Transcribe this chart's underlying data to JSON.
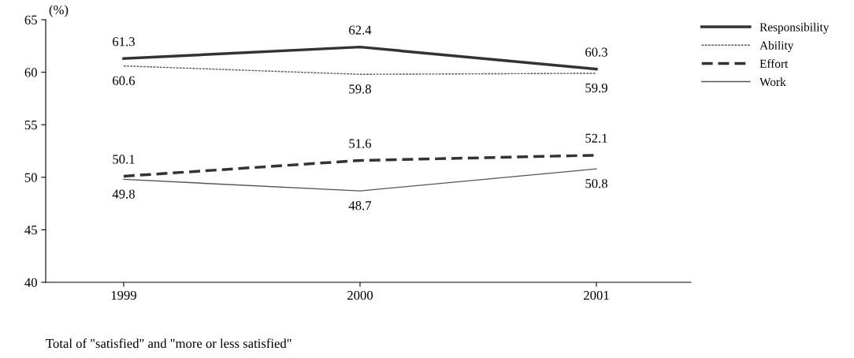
{
  "chart_data": {
    "type": "line",
    "ylabel": "(%)",
    "categories": [
      "1999",
      "2000",
      "2001"
    ],
    "series": [
      {
        "name": "Responsibility",
        "color": "#333333",
        "values": [
          61.3,
          62.4,
          60.3
        ],
        "line_style": "solid"
      },
      {
        "name": "Ability",
        "color": "#555555",
        "values": [
          60.6,
          59.8,
          59.9
        ],
        "line_style": "dotted"
      },
      {
        "name": "Effort",
        "color": "#333333",
        "values": [
          50.1,
          51.6,
          52.1
        ],
        "line_style": "dashed"
      },
      {
        "name": "Work",
        "color": "#555555",
        "values": [
          49.8,
          48.7,
          50.8
        ],
        "line_style": "solid"
      }
    ],
    "ylim": [
      40,
      65
    ],
    "yticks": [
      40,
      45,
      50,
      55,
      60,
      65
    ],
    "grid": false,
    "legend": "right",
    "marker": "none",
    "data_labels": true,
    "annotations": [
      "Total of \"satisfied\" and \"more or less satisfied\""
    ]
  }
}
